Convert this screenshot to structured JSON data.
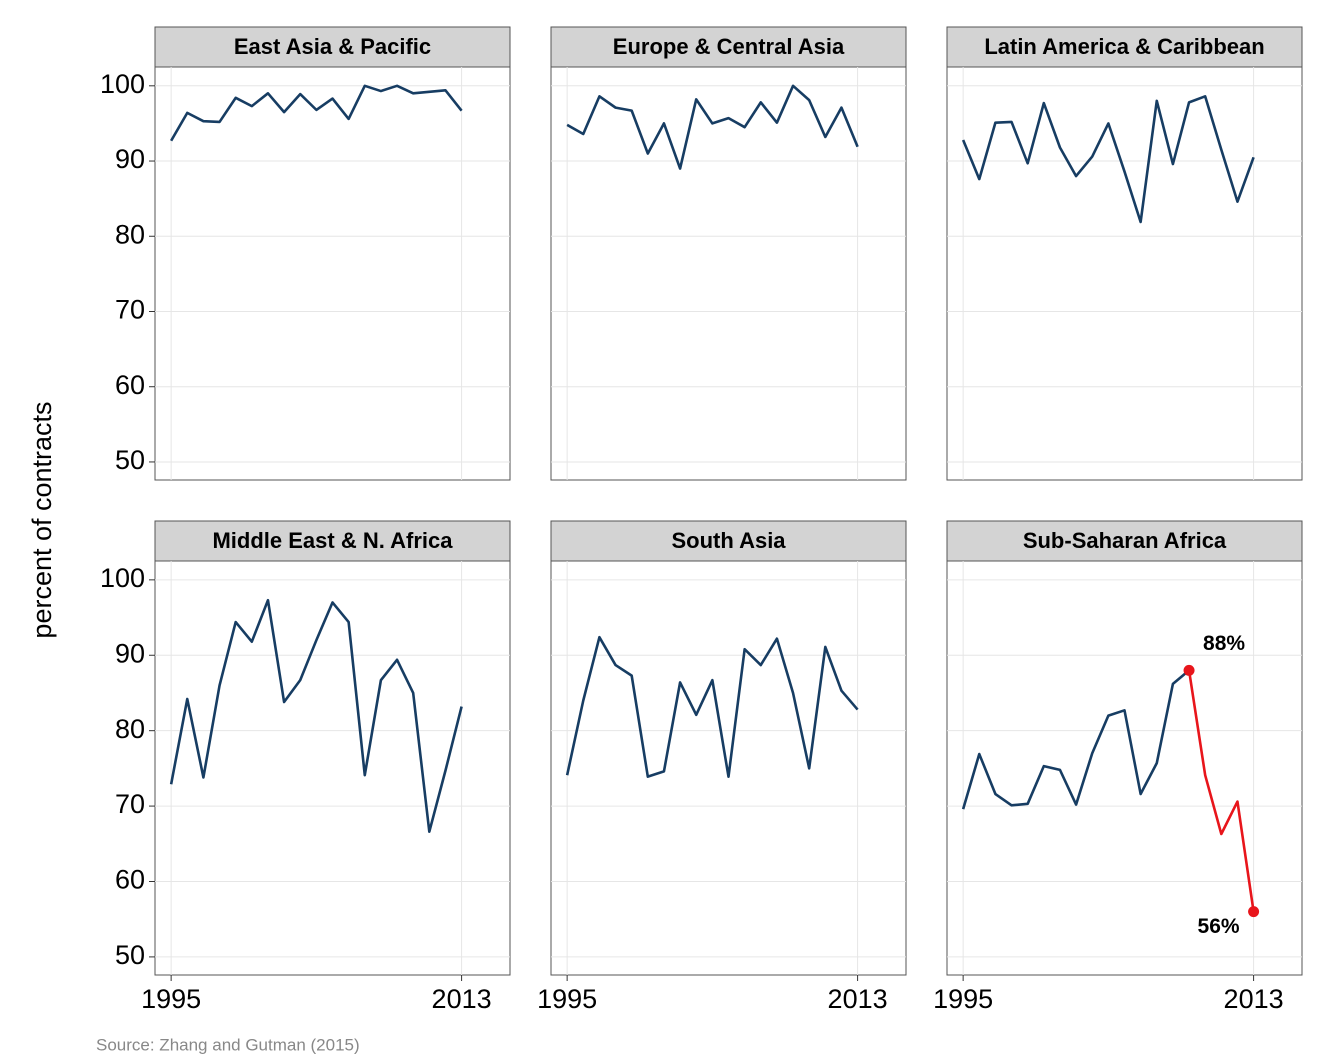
{
  "ylabel": "percent of contracts",
  "source": "Source: Zhang and Gutman (2015)",
  "chart_data": [
    {
      "type": "line",
      "title": "East Asia & Pacific",
      "xlim": [
        1994,
        2016
      ],
      "xticks": [
        1995,
        2013
      ],
      "ylim": [
        47.6,
        102.5
      ],
      "yticks": [
        50,
        60,
        70,
        80,
        90,
        100
      ],
      "grid": true,
      "series": [
        {
          "color": "#173d63",
          "x": [
            1995,
            1996,
            1997,
            1998,
            1999,
            2000,
            2001,
            2002,
            2003,
            2004,
            2005,
            2006,
            2007,
            2008,
            2009,
            2010,
            2011,
            2012,
            2013
          ],
          "values": [
            92.7,
            96.4,
            95.3,
            95.2,
            98.4,
            97.3,
            99.0,
            96.5,
            98.9,
            96.8,
            98.3,
            95.6,
            100,
            99.3,
            100,
            99.0,
            99.2,
            99.4,
            96.7
          ]
        }
      ]
    },
    {
      "type": "line",
      "title": "Europe & Central Asia",
      "xlim": [
        1994,
        2016
      ],
      "xticks": [
        1995,
        2013
      ],
      "ylim": [
        47.6,
        102.5
      ],
      "yticks": [
        50,
        60,
        70,
        80,
        90,
        100
      ],
      "grid": true,
      "series": [
        {
          "color": "#173d63",
          "x": [
            1995,
            1996,
            1997,
            1998,
            1999,
            2000,
            2001,
            2002,
            2003,
            2004,
            2005,
            2006,
            2007,
            2008,
            2009,
            2010,
            2011,
            2012,
            2013
          ],
          "values": [
            94.8,
            93.6,
            98.6,
            97.1,
            96.7,
            91,
            95,
            89,
            98.2,
            95,
            95.7,
            94.5,
            97.8,
            95.1,
            100,
            98.1,
            93.2,
            97.1,
            91.9
          ]
        }
      ]
    },
    {
      "type": "line",
      "title": "Latin America & Caribbean",
      "xlim": [
        1994,
        2016
      ],
      "xticks": [
        1995,
        2013
      ],
      "ylim": [
        47.6,
        102.5
      ],
      "yticks": [
        50,
        60,
        70,
        80,
        90,
        100
      ],
      "grid": true,
      "series": [
        {
          "color": "#173d63",
          "x": [
            1995,
            1996,
            1997,
            1998,
            1999,
            2000,
            2001,
            2002,
            2003,
            2004,
            2005,
            2006,
            2007,
            2008,
            2009,
            2010,
            2011,
            2012,
            2013
          ],
          "values": [
            92.8,
            87.6,
            95.1,
            95.2,
            89.7,
            97.7,
            91.8,
            88,
            90.6,
            95,
            88.6,
            81.9,
            98,
            89.6,
            97.8,
            98.6,
            91.5,
            84.6,
            90.5
          ]
        }
      ]
    },
    {
      "type": "line",
      "title": "Middle East & N. Africa",
      "xlim": [
        1994,
        2016
      ],
      "xticks": [
        1995,
        2013
      ],
      "ylim": [
        47.6,
        102.5
      ],
      "yticks": [
        50,
        60,
        70,
        80,
        90,
        100
      ],
      "grid": true,
      "series": [
        {
          "color": "#173d63",
          "x": [
            1995,
            1996,
            1997,
            1998,
            1999,
            2000,
            2001,
            2002,
            2003,
            2004,
            2005,
            2006,
            2007,
            2008,
            2009,
            2010,
            2011,
            2012,
            2013
          ],
          "values": [
            72.9,
            84.2,
            73.8,
            86,
            94.4,
            91.8,
            97.3,
            83.8,
            86.7,
            92,
            97,
            94.4,
            74.1,
            86.7,
            89.4,
            85,
            66.6,
            74.7,
            83.2
          ]
        }
      ]
    },
    {
      "type": "line",
      "title": "South Asia",
      "xlim": [
        1994,
        2016
      ],
      "xticks": [
        1995,
        2013
      ],
      "ylim": [
        47.6,
        102.5
      ],
      "yticks": [
        50,
        60,
        70,
        80,
        90,
        100
      ],
      "grid": true,
      "series": [
        {
          "color": "#173d63",
          "x": [
            1995,
            1996,
            1997,
            1998,
            1999,
            2000,
            2001,
            2002,
            2003,
            2004,
            2005,
            2006,
            2007,
            2008,
            2009,
            2010,
            2011,
            2012,
            2013
          ],
          "values": [
            74.1,
            84,
            92.4,
            88.7,
            87.3,
            73.9,
            74.6,
            86.4,
            82.1,
            86.7,
            73.9,
            90.8,
            88.7,
            92.2,
            85,
            75,
            91.1,
            85.3,
            82.8
          ]
        }
      ]
    },
    {
      "type": "line",
      "title": "Sub-Saharan Africa",
      "xlim": [
        1994,
        2016
      ],
      "xticks": [
        1995,
        2013
      ],
      "ylim": [
        47.6,
        102.5
      ],
      "yticks": [
        50,
        60,
        70,
        80,
        90,
        100
      ],
      "grid": true,
      "series": [
        {
          "color": "#173d63",
          "x": [
            1995,
            1996,
            1997,
            1998,
            1999,
            2000,
            2001,
            2002,
            2003,
            2004,
            2005,
            2006,
            2007,
            2008,
            2009
          ],
          "values": [
            69.6,
            76.9,
            71.6,
            70.1,
            70.3,
            75.3,
            74.8,
            70.2,
            77,
            82,
            82.7,
            71.6,
            75.7,
            86.2,
            88
          ]
        },
        {
          "color": "#e8151b",
          "x": [
            2009,
            2010,
            2011,
            2012,
            2013
          ],
          "values": [
            88,
            74.1,
            66.3,
            70.6,
            56
          ],
          "value_labels": [
            "88%",
            null,
            null,
            null,
            "56%"
          ]
        }
      ]
    }
  ]
}
